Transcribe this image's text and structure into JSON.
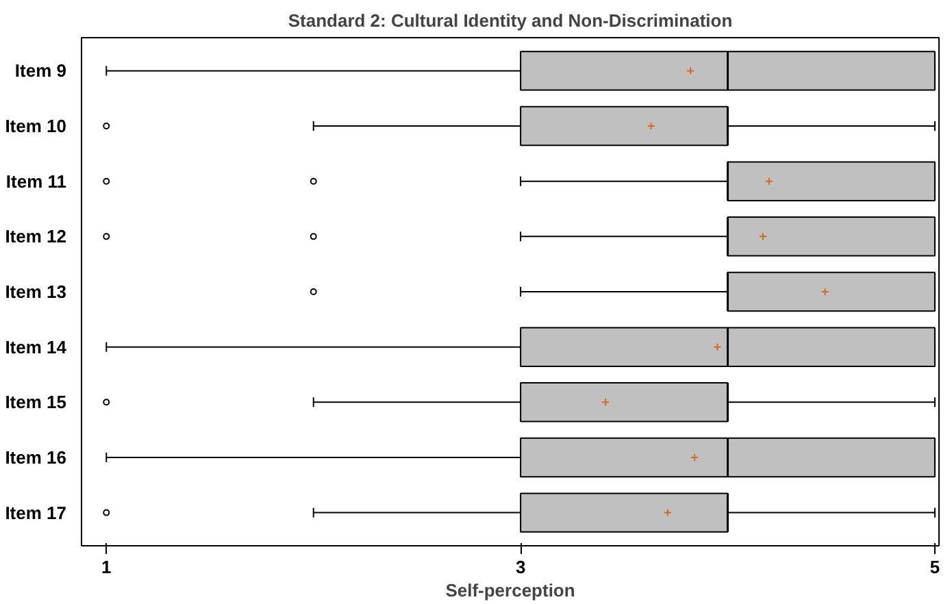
{
  "chart_data": {
    "type": "box",
    "orientation": "horizontal",
    "title": "Standard 2: Cultural Identity and Non-Discrimination",
    "xlabel": "Self-perception",
    "categories": [
      "Item 9",
      "Item 10",
      "Item 11",
      "Item 12",
      "Item 13",
      "Item 14",
      "Item 15",
      "Item 16",
      "Item 17"
    ],
    "xlim": [
      0.88,
      5.02
    ],
    "xticks": [
      1,
      3,
      5
    ],
    "grid": false,
    "color": "#c0c0c0",
    "boxes": [
      {
        "low": 1,
        "q1": 3,
        "median": 4,
        "q3": 5,
        "high": 5,
        "mean": 3.82
      },
      {
        "low": 2,
        "q1": 3,
        "median": 4,
        "q3": 4,
        "high": 5,
        "mean": 3.63,
        "outliers": [
          1
        ]
      },
      {
        "low": 3,
        "q1": 4,
        "median": 4,
        "q3": 5,
        "high": 5,
        "mean": 4.2,
        "outliers": [
          1,
          2
        ]
      },
      {
        "low": 3,
        "q1": 4,
        "median": 4,
        "q3": 5,
        "high": 5,
        "mean": 4.17,
        "outliers": [
          1,
          2
        ]
      },
      {
        "low": 3,
        "q1": 4,
        "median": 4,
        "q3": 5,
        "high": 5,
        "mean": 4.47,
        "outliers": [
          2
        ]
      },
      {
        "low": 1,
        "q1": 3,
        "median": 4,
        "q3": 5,
        "high": 5,
        "mean": 3.95
      },
      {
        "low": 2,
        "q1": 3,
        "median": 4,
        "q3": 4,
        "high": 5,
        "mean": 3.41,
        "outliers": [
          1
        ]
      },
      {
        "low": 1,
        "q1": 3,
        "median": 4,
        "q3": 5,
        "high": 5,
        "mean": 3.84
      },
      {
        "low": 2,
        "q1": 3,
        "median": 4,
        "q3": 4,
        "high": 5,
        "mean": 3.71,
        "outliers": [
          1
        ]
      }
    ]
  }
}
